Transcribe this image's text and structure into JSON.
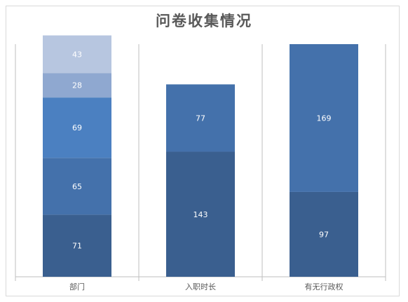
{
  "chart_data": {
    "type": "bar",
    "stacked": true,
    "title": "问卷收集情况",
    "xlabel": "",
    "ylabel": "",
    "ylim": [
      0,
      266
    ],
    "grid": false,
    "categories": [
      "部门",
      "入职时长",
      "有无行政权"
    ],
    "stacks": [
      {
        "category": "部门",
        "segments": [
          {
            "value": 71,
            "color": "#3a5f8f"
          },
          {
            "value": 65,
            "color": "#4471ab"
          },
          {
            "value": 69,
            "color": "#4b80c1"
          },
          {
            "value": 28,
            "color": "#8fa8d0"
          },
          {
            "value": 43,
            "color": "#b7c6e0"
          }
        ]
      },
      {
        "category": "入职时长",
        "segments": [
          {
            "value": 143,
            "color": "#3a5f8f"
          },
          {
            "value": 77,
            "color": "#4471ab"
          }
        ]
      },
      {
        "category": "有无行政权",
        "segments": [
          {
            "value": 97,
            "color": "#3a5f8f"
          },
          {
            "value": 169,
            "color": "#4471ab"
          }
        ]
      }
    ]
  },
  "colors": {
    "axis": "#bfbfbf",
    "label": "#595959",
    "segment_text": "#ffffff"
  }
}
